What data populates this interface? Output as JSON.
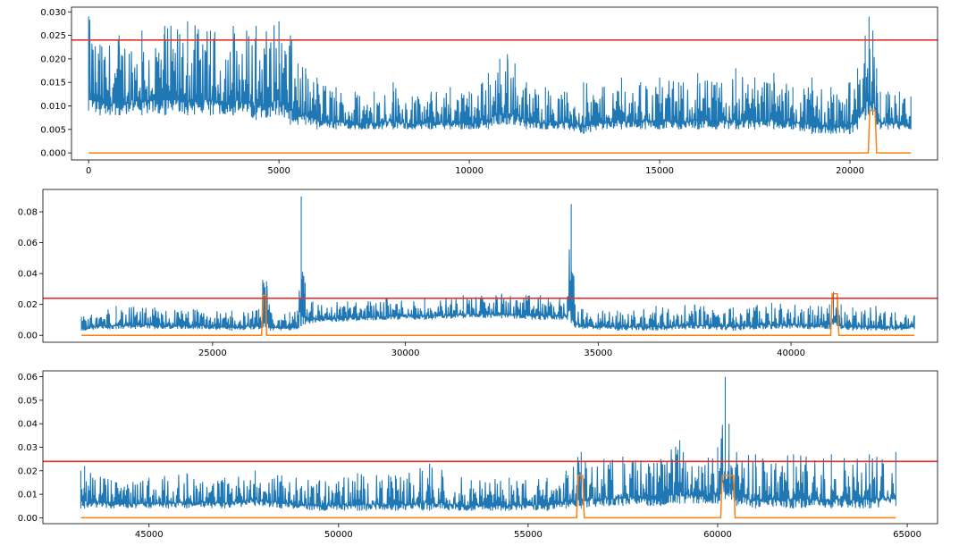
{
  "chart_data": [
    {
      "type": "line",
      "title": "",
      "xlabel": "",
      "ylabel": "",
      "xlim": [
        -450,
        22300
      ],
      "ylim": [
        -0.0015,
        0.031
      ],
      "xticks": [
        0,
        5000,
        10000,
        15000,
        20000
      ],
      "yticks": [
        0.0,
        0.005,
        0.01,
        0.015,
        0.02,
        0.025,
        0.03
      ],
      "ytick_labels": [
        "0.000",
        "0.005",
        "0.010",
        "0.015",
        "0.020",
        "0.025",
        "0.030"
      ],
      "threshold": 0.024,
      "series": [
        {
          "color": "#1f77b4",
          "x": [
            0,
            300,
            800,
            1400,
            2000,
            2600,
            3200,
            3800,
            4400,
            5000,
            5300,
            5500,
            5700,
            6000,
            6500,
            7000,
            7500,
            8000,
            8500,
            9000,
            9500,
            10000,
            10500,
            10800,
            11000,
            11200,
            11500,
            12000,
            12500,
            13000,
            13500,
            14000,
            14500,
            15000,
            15500,
            16000,
            16500,
            17000,
            17500,
            18000,
            18500,
            19000,
            19500,
            20000,
            20200,
            20400,
            20500,
            20600,
            20700,
            20800,
            21000,
            21300,
            21600
          ],
          "y_low": [
            0.009,
            0.008,
            0.008,
            0.008,
            0.008,
            0.008,
            0.008,
            0.008,
            0.007,
            0.008,
            0.006,
            0.006,
            0.006,
            0.005,
            0.005,
            0.005,
            0.005,
            0.005,
            0.005,
            0.005,
            0.005,
            0.005,
            0.005,
            0.006,
            0.006,
            0.006,
            0.005,
            0.005,
            0.005,
            0.004,
            0.005,
            0.005,
            0.005,
            0.005,
            0.005,
            0.005,
            0.005,
            0.005,
            0.005,
            0.005,
            0.005,
            0.004,
            0.004,
            0.004,
            0.005,
            0.007,
            0.008,
            0.008,
            0.006,
            0.005,
            0.005,
            0.005,
            0.005
          ],
          "y_high": [
            0.029,
            0.023,
            0.025,
            0.026,
            0.027,
            0.028,
            0.026,
            0.027,
            0.027,
            0.028,
            0.025,
            0.019,
            0.018,
            0.016,
            0.014,
            0.013,
            0.013,
            0.015,
            0.012,
            0.013,
            0.014,
            0.013,
            0.017,
            0.02,
            0.021,
            0.019,
            0.015,
            0.014,
            0.013,
            0.015,
            0.014,
            0.016,
            0.015,
            0.016,
            0.015,
            0.017,
            0.015,
            0.018,
            0.016,
            0.017,
            0.014,
            0.016,
            0.014,
            0.015,
            0.018,
            0.025,
            0.029,
            0.026,
            0.018,
            0.013,
            0.013,
            0.013,
            0.012
          ]
        },
        {
          "color": "#ff7f0e",
          "x": [
            0,
            20480,
            20520,
            20560,
            20660,
            20700,
            21600
          ],
          "y": [
            0,
            0,
            0.009,
            0.009,
            0.009,
            0,
            0
          ]
        }
      ]
    },
    {
      "type": "line",
      "title": "",
      "xlabel": "",
      "ylabel": "",
      "xlim": [
        20600,
        43800
      ],
      "ylim": [
        -0.0045,
        0.0945
      ],
      "xticks": [
        25000,
        30000,
        35000,
        40000
      ],
      "yticks": [
        0.0,
        0.02,
        0.04,
        0.06,
        0.08
      ],
      "ytick_labels": [
        "0.00",
        "0.02",
        "0.04",
        "0.06",
        "0.08"
      ],
      "threshold": 0.024,
      "series": [
        {
          "color": "#1f77b4",
          "x": [
            21600,
            22500,
            23500,
            24500,
            25500,
            26200,
            26300,
            26400,
            26500,
            27000,
            27200,
            27300,
            27400,
            27600,
            28500,
            29500,
            30500,
            31500,
            32500,
            33500,
            34000,
            34200,
            34300,
            34400,
            34600,
            35500,
            36500,
            37500,
            38500,
            39500,
            40500,
            41000,
            41100,
            41200,
            41300,
            41600,
            42200,
            42700,
            43200
          ],
          "y_low": [
            0.003,
            0.004,
            0.004,
            0.004,
            0.003,
            0.004,
            0.005,
            0.004,
            0.003,
            0.003,
            0.004,
            0.006,
            0.007,
            0.008,
            0.009,
            0.01,
            0.01,
            0.011,
            0.011,
            0.01,
            0.01,
            0.01,
            0.008,
            0.005,
            0.004,
            0.003,
            0.003,
            0.004,
            0.003,
            0.004,
            0.004,
            0.004,
            0.007,
            0.006,
            0.004,
            0.003,
            0.003,
            0.003,
            0.004
          ],
          "y_high": [
            0.012,
            0.019,
            0.018,
            0.017,
            0.016,
            0.017,
            0.036,
            0.035,
            0.015,
            0.015,
            0.016,
            0.09,
            0.034,
            0.022,
            0.022,
            0.024,
            0.024,
            0.026,
            0.027,
            0.026,
            0.024,
            0.025,
            0.085,
            0.02,
            0.017,
            0.016,
            0.019,
            0.02,
            0.018,
            0.021,
            0.019,
            0.02,
            0.028,
            0.026,
            0.02,
            0.018,
            0.019,
            0.015,
            0.013
          ]
        },
        {
          "color": "#ff7f0e",
          "x": [
            21600,
            26270,
            26310,
            26380,
            26400,
            41030,
            41070,
            41200,
            41240,
            43200
          ],
          "y": [
            0,
            0,
            0.026,
            0.026,
            0,
            0,
            0.027,
            0.027,
            0,
            0
          ]
        }
      ]
    },
    {
      "type": "line",
      "title": "",
      "xlabel": "",
      "ylabel": "",
      "xlim": [
        42200,
        65800
      ],
      "ylim": [
        -0.0025,
        0.0625
      ],
      "xticks": [
        45000,
        50000,
        55000,
        60000,
        65000
      ],
      "yticks": [
        0.0,
        0.01,
        0.02,
        0.03,
        0.04,
        0.05,
        0.06
      ],
      "ytick_labels": [
        "0.00",
        "0.01",
        "0.02",
        "0.03",
        "0.04",
        "0.05",
        "0.06"
      ],
      "threshold": 0.024,
      "series": [
        {
          "color": "#1f77b4",
          "x": [
            43200,
            43300,
            44000,
            45000,
            46000,
            47000,
            47800,
            48500,
            49500,
            50500,
            51500,
            52400,
            53500,
            54500,
            55500,
            56000,
            56400,
            57000,
            57500,
            58500,
            59000,
            59500,
            60000,
            60200,
            60300,
            60500,
            61000,
            62000,
            63000,
            64000,
            64700
          ],
          "y_low": [
            0.004,
            0.004,
            0.004,
            0.004,
            0.004,
            0.004,
            0.005,
            0.004,
            0.003,
            0.003,
            0.003,
            0.003,
            0.003,
            0.003,
            0.003,
            0.004,
            0.004,
            0.005,
            0.005,
            0.005,
            0.006,
            0.006,
            0.006,
            0.008,
            0.009,
            0.005,
            0.004,
            0.004,
            0.004,
            0.004,
            0.005
          ],
          "y_high": [
            0.02,
            0.022,
            0.016,
            0.017,
            0.019,
            0.017,
            0.02,
            0.018,
            0.016,
            0.019,
            0.018,
            0.023,
            0.016,
            0.017,
            0.017,
            0.02,
            0.028,
            0.025,
            0.026,
            0.025,
            0.033,
            0.022,
            0.03,
            0.06,
            0.04,
            0.028,
            0.027,
            0.027,
            0.027,
            0.027,
            0.028
          ]
        },
        {
          "color": "#ff7f0e",
          "x": [
            43200,
            56280,
            56320,
            56440,
            56480,
            60080,
            60120,
            60420,
            60460,
            64700
          ],
          "y": [
            0,
            0,
            0.018,
            0.018,
            0,
            0,
            0.018,
            0.018,
            0,
            0
          ]
        }
      ]
    }
  ]
}
